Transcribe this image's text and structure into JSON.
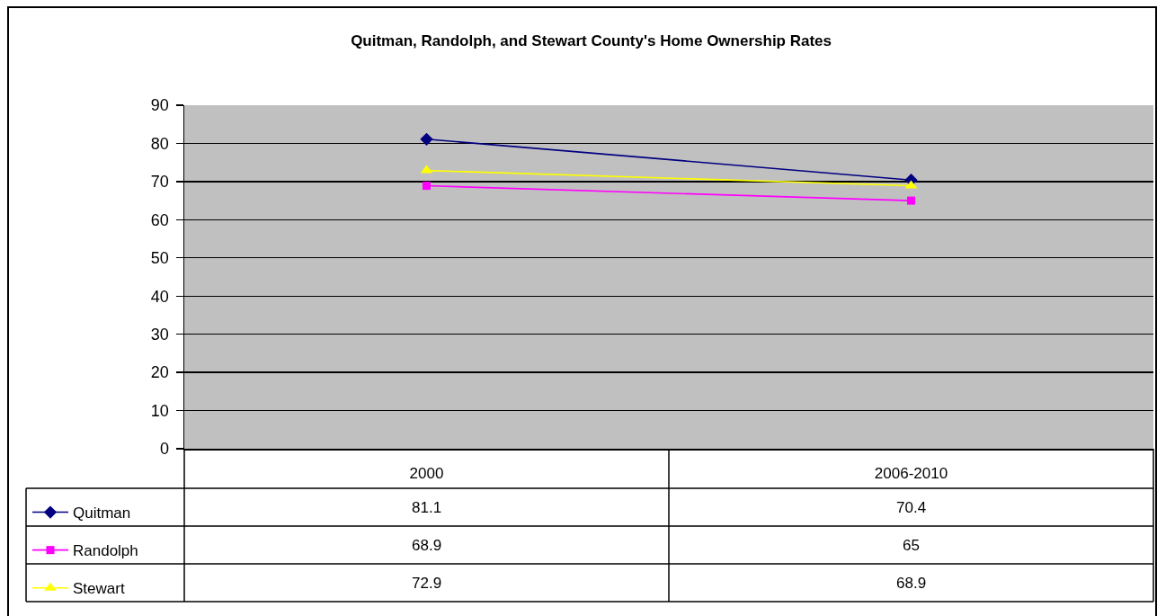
{
  "chart_data": {
    "type": "line",
    "title": "Quitman, Randolph, and Stewart County's Home Ownership Rates",
    "categories": [
      "2000",
      "2006-2010"
    ],
    "series": [
      {
        "name": "Quitman",
        "color": "#000080",
        "marker": "diamond",
        "values": [
          81.1,
          70.4
        ]
      },
      {
        "name": "Randolph",
        "color": "#ff00ff",
        "marker": "square",
        "values": [
          68.9,
          65
        ]
      },
      {
        "name": "Stewart",
        "color": "#ffff00",
        "marker": "triangle",
        "values": [
          72.9,
          68.9
        ]
      }
    ],
    "ylim": [
      0,
      90
    ],
    "yticks": [
      0,
      10,
      20,
      30,
      40,
      50,
      60,
      70,
      80,
      90
    ],
    "grid": "y",
    "legend": "bottom left",
    "data_labels": true
  }
}
